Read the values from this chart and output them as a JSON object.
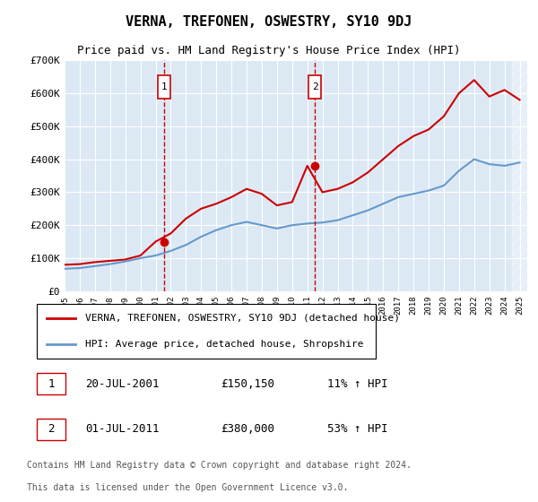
{
  "title": "VERNA, TREFONEN, OSWESTRY, SY10 9DJ",
  "subtitle": "Price paid vs. HM Land Registry's House Price Index (HPI)",
  "legend_line1": "VERNA, TREFONEN, OSWESTRY, SY10 9DJ (detached house)",
  "legend_line2": "HPI: Average price, detached house, Shropshire",
  "footer1": "Contains HM Land Registry data © Crown copyright and database right 2024.",
  "footer2": "This data is licensed under the Open Government Licence v3.0.",
  "annotation1_label": "1",
  "annotation1_date": "20-JUL-2001",
  "annotation1_price": "£150,150",
  "annotation1_hpi": "11% ↑ HPI",
  "annotation2_label": "2",
  "annotation2_date": "01-JUL-2011",
  "annotation2_price": "£380,000",
  "annotation2_hpi": "53% ↑ HPI",
  "vline1_x": 2001.55,
  "vline2_x": 2011.5,
  "bg_color": "#dce9f5",
  "red_color": "#cc0000",
  "blue_color": "#6699cc",
  "ylim": [
    0,
    700000
  ],
  "yticks": [
    0,
    100000,
    200000,
    300000,
    400000,
    500000,
    600000,
    700000
  ],
  "ytick_labels": [
    "£0",
    "£100K",
    "£200K",
    "£300K",
    "£400K",
    "£500K",
    "£600K",
    "£700K"
  ],
  "hpi_years": [
    1995,
    1996,
    1997,
    1998,
    1999,
    2000,
    2001,
    2002,
    2003,
    2004,
    2005,
    2006,
    2007,
    2008,
    2009,
    2010,
    2011,
    2012,
    2013,
    2014,
    2015,
    2016,
    2017,
    2018,
    2019,
    2020,
    2021,
    2022,
    2023,
    2024,
    2025
  ],
  "hpi_values": [
    68000,
    70000,
    76000,
    82000,
    90000,
    100000,
    108000,
    122000,
    140000,
    165000,
    185000,
    200000,
    210000,
    200000,
    190000,
    200000,
    205000,
    208000,
    215000,
    230000,
    245000,
    265000,
    285000,
    295000,
    305000,
    320000,
    365000,
    400000,
    385000,
    380000,
    390000
  ],
  "price_years": [
    1995,
    1996,
    1997,
    1998,
    1999,
    2000,
    2001,
    2002,
    2003,
    2004,
    2005,
    2006,
    2007,
    2008,
    2009,
    2010,
    2011,
    2012,
    2013,
    2014,
    2015,
    2016,
    2017,
    2018,
    2019,
    2020,
    2021,
    2022,
    2023,
    2024,
    2025
  ],
  "price_values": [
    80000,
    82000,
    88000,
    92000,
    96000,
    108000,
    150150,
    175000,
    220000,
    250000,
    265000,
    285000,
    310000,
    295000,
    260000,
    270000,
    380000,
    300000,
    310000,
    330000,
    360000,
    400000,
    440000,
    470000,
    490000,
    530000,
    600000,
    640000,
    590000,
    610000,
    580000
  ],
  "xmin": 1995,
  "xmax": 2025.5,
  "hatch_start": 2024.5,
  "marker1_x": 2001.55,
  "marker1_y": 150150,
  "marker2_x": 2011.5,
  "marker2_y": 380000
}
